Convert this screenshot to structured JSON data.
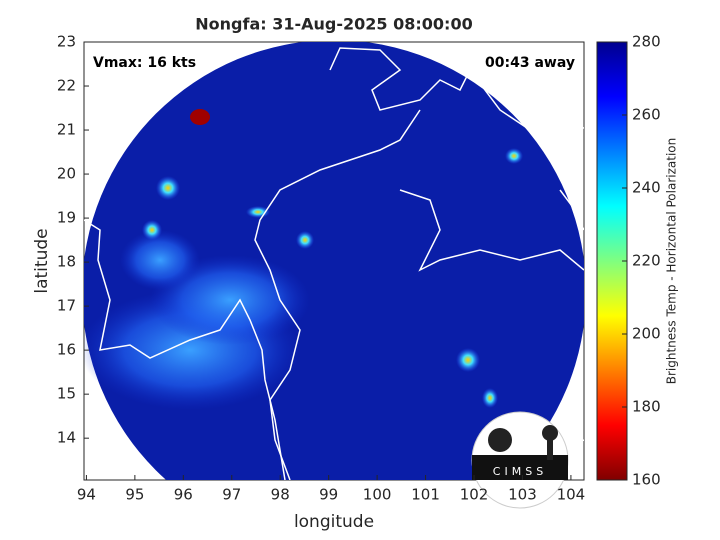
{
  "title": "Nongfa: 31-Aug-2025 08:00:00",
  "annotations": {
    "vmax": "Vmax: 16 kts",
    "time_away": "00:43 away"
  },
  "x_axis": {
    "label": "longitude",
    "lim": [
      93.95,
      104.27
    ],
    "ticks": [
      94,
      95,
      96,
      97,
      98,
      99,
      100,
      101,
      102,
      103,
      104
    ]
  },
  "y_axis": {
    "label": "latitude",
    "lim": [
      13.05,
      23
    ],
    "ticks": [
      14,
      15,
      16,
      17,
      18,
      19,
      20,
      21,
      22,
      23
    ]
  },
  "colorbar": {
    "label": "Brightness Temp - Horizontal Polarization",
    "lim": [
      160,
      280
    ],
    "ticks": [
      160,
      180,
      200,
      220,
      240,
      260,
      280
    ]
  },
  "logo": "CIMSS"
}
